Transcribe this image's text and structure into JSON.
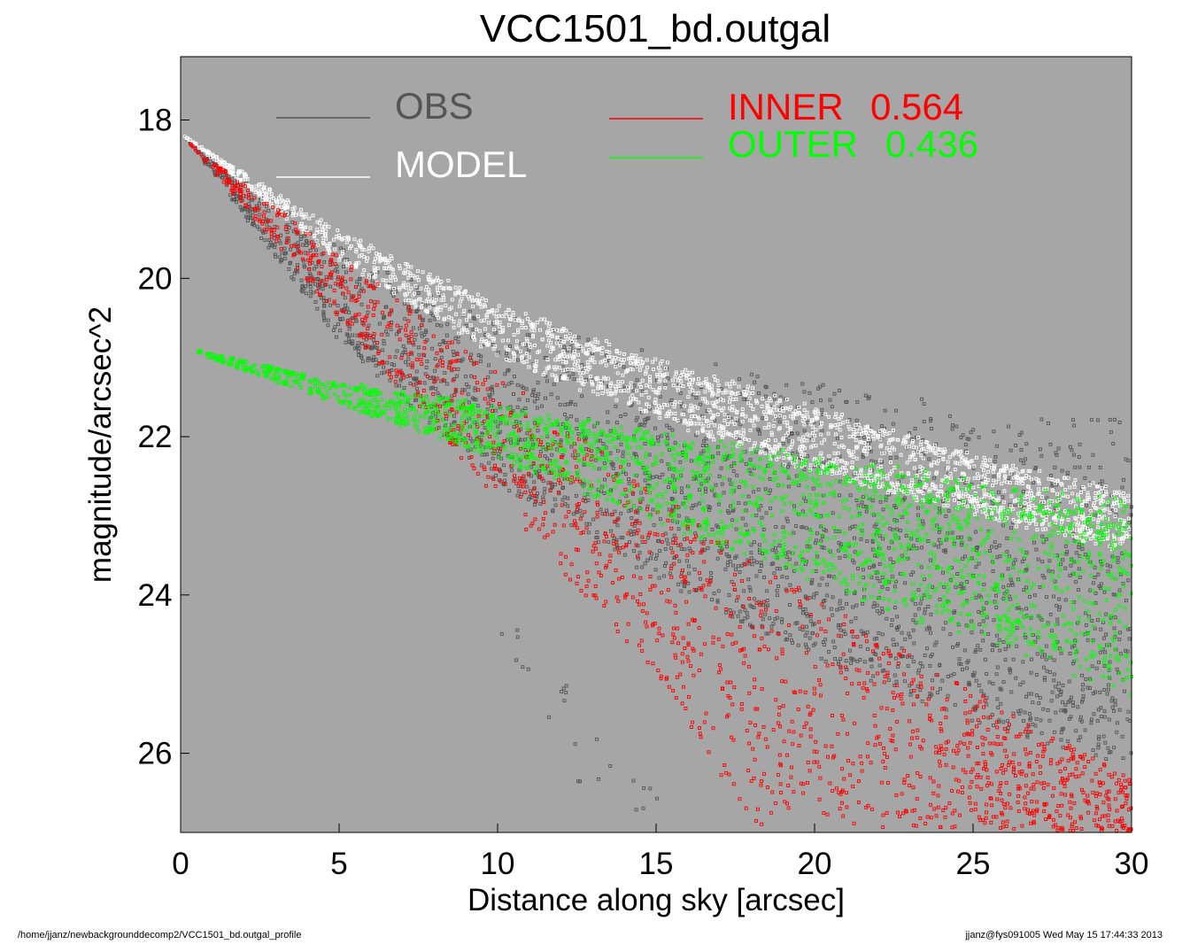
{
  "chart_data": {
    "type": "scatter",
    "title": "VCC1501_bd.outgal",
    "xlabel": "Distance along sky [arcsec]",
    "ylabel": "magnitude/arcsec^2",
    "xlim": [
      0,
      30
    ],
    "ylim": [
      27.0,
      17.2
    ],
    "y_inverted": true,
    "xticks": [
      "0",
      "5",
      "10",
      "15",
      "20",
      "25",
      "30"
    ],
    "yticks": [
      "18",
      "20",
      "22",
      "24",
      "26"
    ],
    "grid": false,
    "background_color": "#a6a6a6",
    "legend_placement": "top",
    "series": [
      {
        "name": "OBS",
        "color": "#555555",
        "marker": "square",
        "upper_envelope": [
          [
            0.1,
            18.2
          ],
          [
            5,
            19.6
          ],
          [
            10,
            20.4
          ],
          [
            15,
            20.9
          ],
          [
            20,
            21.3
          ],
          [
            25,
            21.6
          ],
          [
            30,
            21.7
          ]
        ],
        "lower_envelope": [
          [
            0.1,
            18.2
          ],
          [
            5,
            20.8
          ],
          [
            10,
            22.6
          ],
          [
            15,
            23.8
          ],
          [
            20,
            24.8
          ],
          [
            25,
            25.6
          ],
          [
            30,
            26.2
          ]
        ],
        "sparse_fringe": [
          [
            10.5,
            24.7
          ],
          [
            12.0,
            25.4
          ],
          [
            13.0,
            26.1
          ],
          [
            14.5,
            26.6
          ]
        ]
      },
      {
        "name": "MODEL",
        "color": "#ffffff",
        "marker": "square",
        "upper_envelope": [
          [
            0.1,
            18.2
          ],
          [
            5,
            19.4
          ],
          [
            10,
            20.3
          ],
          [
            15,
            21.0
          ],
          [
            20,
            21.6
          ],
          [
            25,
            22.2
          ],
          [
            30,
            22.7
          ]
        ],
        "lower_envelope": [
          [
            0.1,
            18.2
          ],
          [
            5,
            19.8
          ],
          [
            10,
            21.0
          ],
          [
            15,
            21.8
          ],
          [
            20,
            22.5
          ],
          [
            25,
            23.0
          ],
          [
            30,
            23.5
          ]
        ]
      },
      {
        "name": "INNER",
        "value": "0.564",
        "color": "#ff0000",
        "marker": "square",
        "upper_envelope": [
          [
            0.3,
            18.3
          ],
          [
            5,
            19.7
          ],
          [
            10,
            21.2
          ],
          [
            15,
            22.7
          ],
          [
            20,
            24.0
          ],
          [
            25,
            25.2
          ],
          [
            30,
            26.3
          ]
        ],
        "lower_envelope": [
          [
            0.3,
            18.3
          ],
          [
            5,
            20.5
          ],
          [
            10,
            22.8
          ],
          [
            15,
            25.0
          ],
          [
            18,
            26.9
          ],
          [
            30,
            27.0
          ]
        ]
      },
      {
        "name": "OUTER",
        "value": "0.436",
        "color": "#00ff00",
        "marker": "square",
        "upper_envelope": [
          [
            0.5,
            20.9
          ],
          [
            5,
            21.3
          ],
          [
            10,
            21.6
          ],
          [
            15,
            21.9
          ],
          [
            20,
            22.2
          ],
          [
            25,
            22.5
          ],
          [
            30,
            22.8
          ]
        ],
        "lower_envelope": [
          [
            0.5,
            20.95
          ],
          [
            5,
            21.6
          ],
          [
            10,
            22.3
          ],
          [
            15,
            23.1
          ],
          [
            20,
            23.9
          ],
          [
            25,
            24.6
          ],
          [
            30,
            25.3
          ]
        ]
      }
    ]
  },
  "legend": {
    "obs_label": "OBS",
    "model_label": "MODEL",
    "inner_label": "INNER",
    "inner_value": "0.564",
    "outer_label": "OUTER",
    "outer_value": "0.436"
  },
  "footer": {
    "left_text": "/home/jjanz/newbackgrounddecomp2/VCC1501_bd.outgal_profile",
    "right_text": "jjanz@fys091005  Wed May 15 17:44:33 2013"
  }
}
